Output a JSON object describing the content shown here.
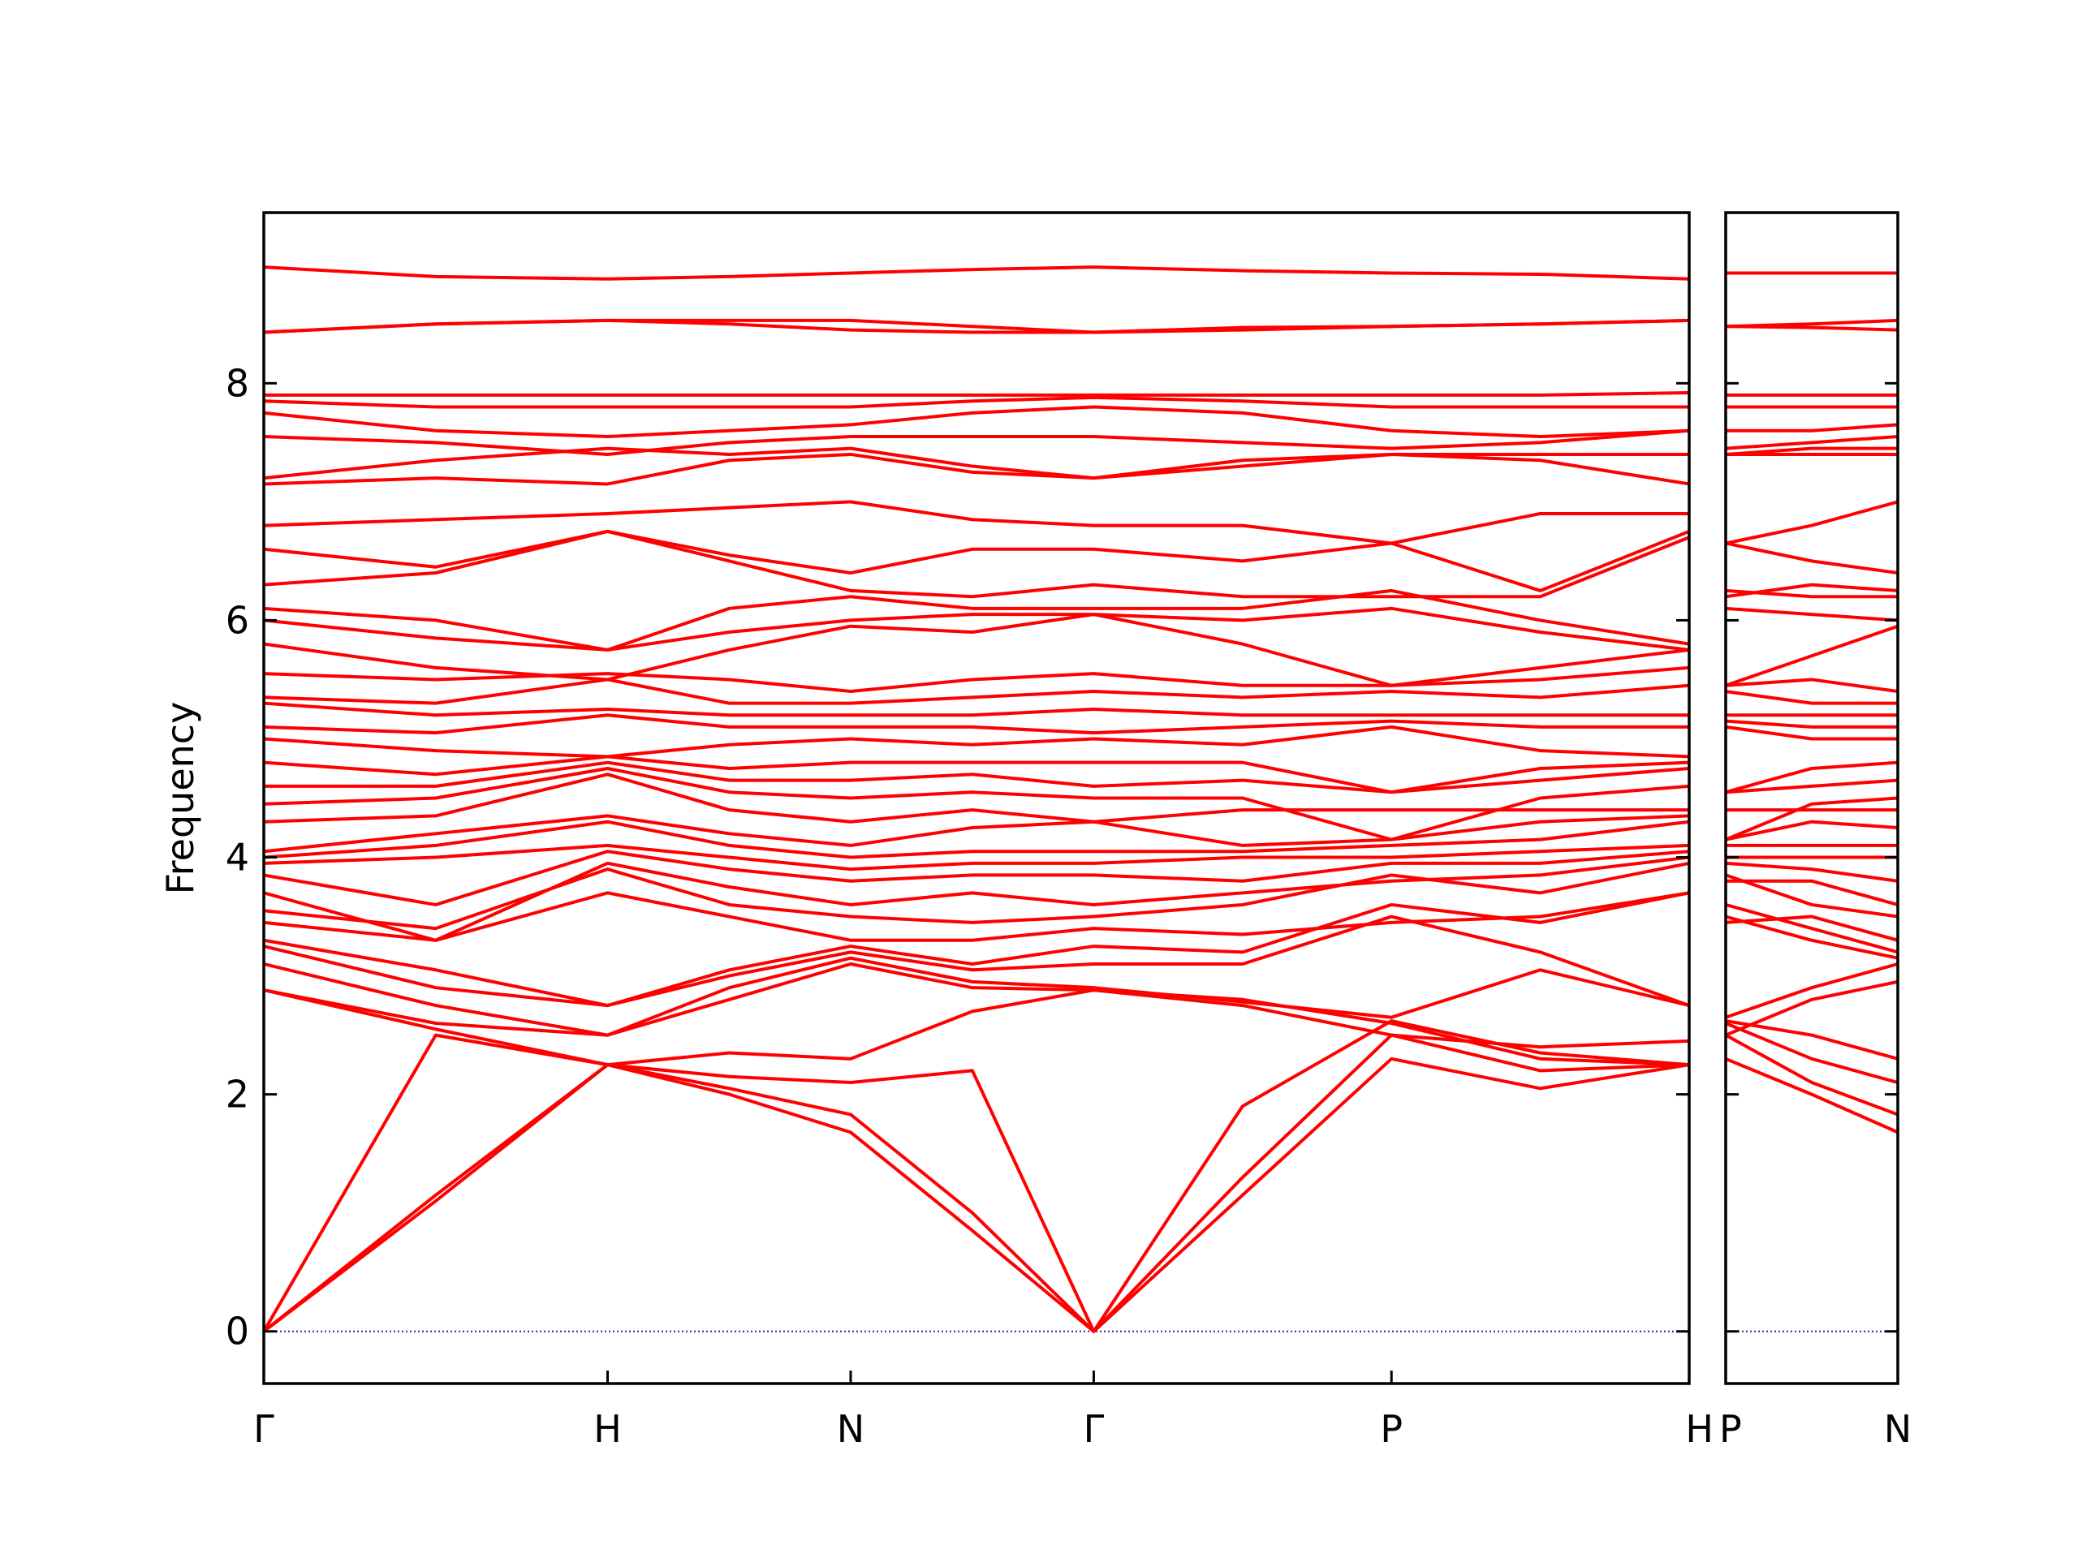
{
  "chart_data": [
    {
      "type": "line",
      "ylabel": "Frequency",
      "color": "#ff0000",
      "hline": {
        "value": 0,
        "color": "#2222aa",
        "style": "dotted"
      },
      "xlim": [
        0,
        4.146
      ],
      "ylim": [
        -0.44,
        9.44
      ],
      "xticks": [
        {
          "value": 0,
          "label": "Γ"
        },
        {
          "value": 1,
          "label": "H"
        },
        {
          "value": 1.707,
          "label": "N"
        },
        {
          "value": 2.414,
          "label": "Γ"
        },
        {
          "value": 3.28,
          "label": "P"
        },
        {
          "value": 4.146,
          "label": "H"
        }
      ],
      "yticks": [
        0,
        2,
        4,
        6,
        8
      ],
      "x": [
        0,
        0.5,
        1,
        1.354,
        1.707,
        2.061,
        2.414,
        2.847,
        3.28,
        3.713,
        4.146
      ],
      "series": [
        {
          "values": [
            0,
            1.1,
            2.25,
            2.0,
            1.68,
            0.85,
            0,
            1.15,
            2.3,
            2.05,
            2.25
          ]
        },
        {
          "values": [
            0,
            1.15,
            2.25,
            2.05,
            1.83,
            1.0,
            0,
            1.3,
            2.5,
            2.2,
            2.25
          ]
        },
        {
          "values": [
            0,
            2.5,
            2.25,
            2.15,
            2.1,
            2.2,
            0,
            1.9,
            2.62,
            2.35,
            2.25
          ]
        },
        {
          "values": [
            2.88,
            2.55,
            2.25,
            2.35,
            2.3,
            2.7,
            2.88,
            2.8,
            2.6,
            2.3,
            2.25
          ]
        },
        {
          "values": [
            2.88,
            2.6,
            2.5,
            2.8,
            3.1,
            2.9,
            2.88,
            2.75,
            2.5,
            2.4,
            2.45
          ]
        },
        {
          "values": [
            3.1,
            2.75,
            2.5,
            2.9,
            3.15,
            2.95,
            2.9,
            2.78,
            2.65,
            3.05,
            2.75
          ]
        },
        {
          "values": [
            3.25,
            2.9,
            2.75,
            3.0,
            3.2,
            3.05,
            3.1,
            3.1,
            3.5,
            3.2,
            2.75
          ]
        },
        {
          "values": [
            3.3,
            3.05,
            2.75,
            3.05,
            3.25,
            3.1,
            3.25,
            3.2,
            3.6,
            3.45,
            3.7
          ]
        },
        {
          "values": [
            3.45,
            3.3,
            3.7,
            3.5,
            3.3,
            3.3,
            3.4,
            3.35,
            3.45,
            3.5,
            3.7
          ]
        },
        {
          "values": [
            3.55,
            3.4,
            3.9,
            3.6,
            3.5,
            3.45,
            3.5,
            3.6,
            3.85,
            3.7,
            3.95
          ]
        },
        {
          "values": [
            3.7,
            3.3,
            3.95,
            3.75,
            3.6,
            3.7,
            3.6,
            3.7,
            3.8,
            3.85,
            4.0
          ]
        },
        {
          "values": [
            3.85,
            3.6,
            4.05,
            3.9,
            3.8,
            3.85,
            3.85,
            3.8,
            3.95,
            3.95,
            4.05
          ]
        },
        {
          "values": [
            3.95,
            4.0,
            4.1,
            4.0,
            3.9,
            3.95,
            3.95,
            4.0,
            4.0,
            4.05,
            4.1
          ]
        },
        {
          "values": [
            4.0,
            4.1,
            4.3,
            4.1,
            4.0,
            4.05,
            4.05,
            4.05,
            4.1,
            4.15,
            4.3
          ]
        },
        {
          "values": [
            4.05,
            4.2,
            4.35,
            4.2,
            4.1,
            4.25,
            4.3,
            4.1,
            4.15,
            4.3,
            4.35
          ]
        },
        {
          "values": [
            4.3,
            4.35,
            4.7,
            4.4,
            4.3,
            4.4,
            4.3,
            4.4,
            4.4,
            4.4,
            4.4
          ]
        },
        {
          "values": [
            4.45,
            4.5,
            4.75,
            4.55,
            4.5,
            4.55,
            4.5,
            4.5,
            4.15,
            4.5,
            4.6
          ]
        },
        {
          "values": [
            4.6,
            4.6,
            4.8,
            4.65,
            4.65,
            4.7,
            4.6,
            4.65,
            4.55,
            4.65,
            4.75
          ]
        },
        {
          "values": [
            4.8,
            4.7,
            4.85,
            4.75,
            4.8,
            4.8,
            4.8,
            4.8,
            4.55,
            4.75,
            4.8
          ]
        },
        {
          "values": [
            5.0,
            4.9,
            4.85,
            4.95,
            5.0,
            4.95,
            5.0,
            4.95,
            5.1,
            4.9,
            4.85
          ]
        },
        {
          "values": [
            5.1,
            5.05,
            5.2,
            5.1,
            5.1,
            5.1,
            5.05,
            5.1,
            5.15,
            5.1,
            5.1
          ]
        },
        {
          "values": [
            5.3,
            5.2,
            5.25,
            5.2,
            5.2,
            5.2,
            5.25,
            5.2,
            5.2,
            5.2,
            5.2
          ]
        },
        {
          "values": [
            5.35,
            5.3,
            5.5,
            5.3,
            5.3,
            5.35,
            5.4,
            5.35,
            5.4,
            5.35,
            5.45
          ]
        },
        {
          "values": [
            5.55,
            5.5,
            5.55,
            5.5,
            5.4,
            5.5,
            5.55,
            5.45,
            5.45,
            5.5,
            5.6
          ]
        },
        {
          "values": [
            5.8,
            5.6,
            5.5,
            5.75,
            5.95,
            5.9,
            6.05,
            5.8,
            5.45,
            5.6,
            5.75
          ]
        },
        {
          "values": [
            6.0,
            5.85,
            5.75,
            5.9,
            6.0,
            6.05,
            6.05,
            6.0,
            6.1,
            5.9,
            5.75
          ]
        },
        {
          "values": [
            6.1,
            6.0,
            5.75,
            6.1,
            6.2,
            6.1,
            6.1,
            6.1,
            6.25,
            6.0,
            5.8
          ]
        },
        {
          "values": [
            6.3,
            6.4,
            6.75,
            6.5,
            6.25,
            6.2,
            6.3,
            6.2,
            6.2,
            6.2,
            6.7
          ]
        },
        {
          "values": [
            6.6,
            6.45,
            6.75,
            6.55,
            6.4,
            6.6,
            6.6,
            6.5,
            6.65,
            6.25,
            6.75
          ]
        },
        {
          "values": [
            6.8,
            6.85,
            6.9,
            6.95,
            7.0,
            6.85,
            6.8,
            6.8,
            6.65,
            6.9,
            6.9
          ]
        },
        {
          "values": [
            7.15,
            7.2,
            7.15,
            7.35,
            7.4,
            7.25,
            7.2,
            7.3,
            7.4,
            7.35,
            7.15
          ]
        },
        {
          "values": [
            7.2,
            7.35,
            7.45,
            7.4,
            7.45,
            7.3,
            7.2,
            7.35,
            7.4,
            7.4,
            7.4
          ]
        },
        {
          "values": [
            7.55,
            7.5,
            7.4,
            7.5,
            7.55,
            7.55,
            7.55,
            7.5,
            7.45,
            7.5,
            7.6
          ]
        },
        {
          "values": [
            7.75,
            7.6,
            7.55,
            7.6,
            7.65,
            7.75,
            7.8,
            7.75,
            7.6,
            7.55,
            7.6
          ]
        },
        {
          "values": [
            7.85,
            7.8,
            7.8,
            7.8,
            7.8,
            7.85,
            7.88,
            7.85,
            7.8,
            7.8,
            7.8
          ]
        },
        {
          "values": [
            7.9,
            7.9,
            7.9,
            7.9,
            7.9,
            7.9,
            7.9,
            7.9,
            7.9,
            7.9,
            7.92
          ]
        },
        {
          "values": [
            8.43,
            8.5,
            8.53,
            8.5,
            8.45,
            8.43,
            8.43,
            8.45,
            8.48,
            8.5,
            8.53
          ]
        },
        {
          "values": [
            8.43,
            8.5,
            8.53,
            8.53,
            8.53,
            8.48,
            8.43,
            8.47,
            8.48,
            8.5,
            8.53
          ]
        },
        {
          "values": [
            8.98,
            8.9,
            8.88,
            8.9,
            8.93,
            8.96,
            8.98,
            8.95,
            8.93,
            8.92,
            8.88
          ]
        }
      ]
    },
    {
      "type": "line",
      "color": "#ff0000",
      "hline": {
        "value": 0,
        "color": "#2222aa",
        "style": "dotted"
      },
      "xlim": [
        4.146,
        4.646
      ],
      "ylim": [
        -0.44,
        9.44
      ],
      "xticks": [
        {
          "value": 4.146,
          "label": "P"
        },
        {
          "value": 4.646,
          "label": "N"
        }
      ],
      "yticks": [
        0,
        2,
        4,
        6,
        8
      ],
      "x": [
        4.146,
        4.396,
        4.646
      ],
      "series": [
        {
          "values": [
            2.3,
            2.0,
            1.68
          ]
        },
        {
          "values": [
            2.5,
            2.1,
            1.83
          ]
        },
        {
          "values": [
            2.6,
            2.3,
            2.1
          ]
        },
        {
          "values": [
            2.62,
            2.5,
            2.3
          ]
        },
        {
          "values": [
            2.5,
            2.8,
            2.95
          ]
        },
        {
          "values": [
            2.65,
            2.9,
            3.1
          ]
        },
        {
          "values": [
            3.5,
            3.3,
            3.15
          ]
        },
        {
          "values": [
            3.6,
            3.4,
            3.2
          ]
        },
        {
          "values": [
            3.45,
            3.5,
            3.3
          ]
        },
        {
          "values": [
            3.85,
            3.6,
            3.5
          ]
        },
        {
          "values": [
            3.8,
            3.8,
            3.6
          ]
        },
        {
          "values": [
            3.95,
            3.9,
            3.8
          ]
        },
        {
          "values": [
            4.0,
            4.0,
            4.0
          ]
        },
        {
          "values": [
            4.1,
            4.1,
            4.1
          ]
        },
        {
          "values": [
            4.15,
            4.3,
            4.25
          ]
        },
        {
          "values": [
            4.4,
            4.4,
            4.4
          ]
        },
        {
          "values": [
            4.15,
            4.45,
            4.5
          ]
        },
        {
          "values": [
            4.55,
            4.6,
            4.65
          ]
        },
        {
          "values": [
            4.55,
            4.75,
            4.8
          ]
        },
        {
          "values": [
            5.1,
            5.0,
            5.0
          ]
        },
        {
          "values": [
            5.15,
            5.1,
            5.1
          ]
        },
        {
          "values": [
            5.2,
            5.2,
            5.2
          ]
        },
        {
          "values": [
            5.4,
            5.3,
            5.3
          ]
        },
        {
          "values": [
            5.45,
            5.5,
            5.4
          ]
        },
        {
          "values": [
            5.45,
            5.7,
            5.95
          ]
        },
        {
          "values": [
            6.1,
            6.05,
            6.0
          ]
        },
        {
          "values": [
            6.25,
            6.2,
            6.2
          ]
        },
        {
          "values": [
            6.2,
            6.3,
            6.25
          ]
        },
        {
          "values": [
            6.65,
            6.5,
            6.4
          ]
        },
        {
          "values": [
            6.65,
            6.8,
            7.0
          ]
        },
        {
          "values": [
            7.4,
            7.4,
            7.4
          ]
        },
        {
          "values": [
            7.4,
            7.45,
            7.45
          ]
        },
        {
          "values": [
            7.45,
            7.5,
            7.55
          ]
        },
        {
          "values": [
            7.6,
            7.6,
            7.65
          ]
        },
        {
          "values": [
            7.8,
            7.8,
            7.8
          ]
        },
        {
          "values": [
            7.9,
            7.9,
            7.9
          ]
        },
        {
          "values": [
            8.48,
            8.47,
            8.45
          ]
        },
        {
          "values": [
            8.48,
            8.5,
            8.53
          ]
        },
        {
          "values": [
            8.93,
            8.93,
            8.93
          ]
        }
      ]
    }
  ]
}
